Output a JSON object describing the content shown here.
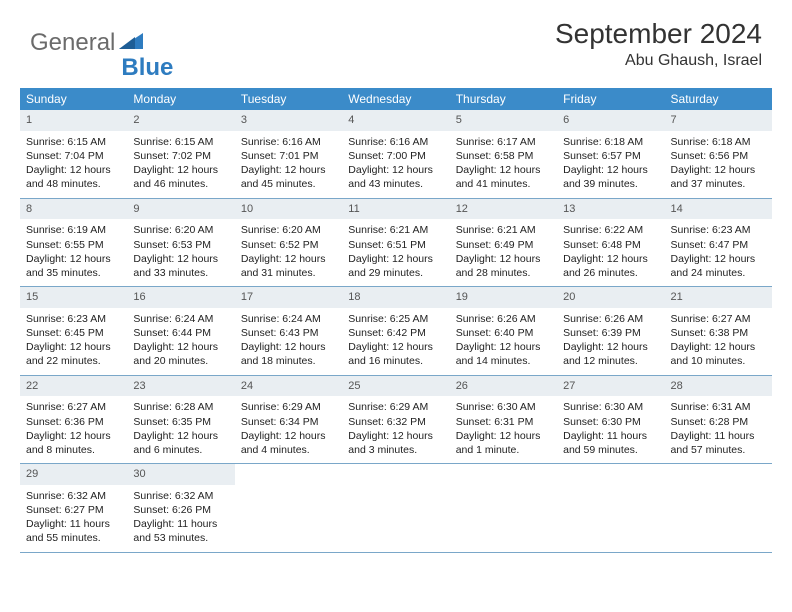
{
  "brand": {
    "part1": "General",
    "part2": "Blue"
  },
  "title": "September 2024",
  "location": "Abu Ghaush, Israel",
  "colors": {
    "header_bg": "#3b8bc9",
    "header_text": "#ffffff",
    "daynum_bg": "#e9eef2",
    "row_border": "#7aa7c9",
    "logo_gray": "#6b6b6b",
    "logo_blue": "#2e7cc0"
  },
  "day_names": [
    "Sunday",
    "Monday",
    "Tuesday",
    "Wednesday",
    "Thursday",
    "Friday",
    "Saturday"
  ],
  "weeks": [
    [
      {
        "n": "1",
        "sr": "Sunrise: 6:15 AM",
        "ss": "Sunset: 7:04 PM",
        "d1": "Daylight: 12 hours",
        "d2": "and 48 minutes."
      },
      {
        "n": "2",
        "sr": "Sunrise: 6:15 AM",
        "ss": "Sunset: 7:02 PM",
        "d1": "Daylight: 12 hours",
        "d2": "and 46 minutes."
      },
      {
        "n": "3",
        "sr": "Sunrise: 6:16 AM",
        "ss": "Sunset: 7:01 PM",
        "d1": "Daylight: 12 hours",
        "d2": "and 45 minutes."
      },
      {
        "n": "4",
        "sr": "Sunrise: 6:16 AM",
        "ss": "Sunset: 7:00 PM",
        "d1": "Daylight: 12 hours",
        "d2": "and 43 minutes."
      },
      {
        "n": "5",
        "sr": "Sunrise: 6:17 AM",
        "ss": "Sunset: 6:58 PM",
        "d1": "Daylight: 12 hours",
        "d2": "and 41 minutes."
      },
      {
        "n": "6",
        "sr": "Sunrise: 6:18 AM",
        "ss": "Sunset: 6:57 PM",
        "d1": "Daylight: 12 hours",
        "d2": "and 39 minutes."
      },
      {
        "n": "7",
        "sr": "Sunrise: 6:18 AM",
        "ss": "Sunset: 6:56 PM",
        "d1": "Daylight: 12 hours",
        "d2": "and 37 minutes."
      }
    ],
    [
      {
        "n": "8",
        "sr": "Sunrise: 6:19 AM",
        "ss": "Sunset: 6:55 PM",
        "d1": "Daylight: 12 hours",
        "d2": "and 35 minutes."
      },
      {
        "n": "9",
        "sr": "Sunrise: 6:20 AM",
        "ss": "Sunset: 6:53 PM",
        "d1": "Daylight: 12 hours",
        "d2": "and 33 minutes."
      },
      {
        "n": "10",
        "sr": "Sunrise: 6:20 AM",
        "ss": "Sunset: 6:52 PM",
        "d1": "Daylight: 12 hours",
        "d2": "and 31 minutes."
      },
      {
        "n": "11",
        "sr": "Sunrise: 6:21 AM",
        "ss": "Sunset: 6:51 PM",
        "d1": "Daylight: 12 hours",
        "d2": "and 29 minutes."
      },
      {
        "n": "12",
        "sr": "Sunrise: 6:21 AM",
        "ss": "Sunset: 6:49 PM",
        "d1": "Daylight: 12 hours",
        "d2": "and 28 minutes."
      },
      {
        "n": "13",
        "sr": "Sunrise: 6:22 AM",
        "ss": "Sunset: 6:48 PM",
        "d1": "Daylight: 12 hours",
        "d2": "and 26 minutes."
      },
      {
        "n": "14",
        "sr": "Sunrise: 6:23 AM",
        "ss": "Sunset: 6:47 PM",
        "d1": "Daylight: 12 hours",
        "d2": "and 24 minutes."
      }
    ],
    [
      {
        "n": "15",
        "sr": "Sunrise: 6:23 AM",
        "ss": "Sunset: 6:45 PM",
        "d1": "Daylight: 12 hours",
        "d2": "and 22 minutes."
      },
      {
        "n": "16",
        "sr": "Sunrise: 6:24 AM",
        "ss": "Sunset: 6:44 PM",
        "d1": "Daylight: 12 hours",
        "d2": "and 20 minutes."
      },
      {
        "n": "17",
        "sr": "Sunrise: 6:24 AM",
        "ss": "Sunset: 6:43 PM",
        "d1": "Daylight: 12 hours",
        "d2": "and 18 minutes."
      },
      {
        "n": "18",
        "sr": "Sunrise: 6:25 AM",
        "ss": "Sunset: 6:42 PM",
        "d1": "Daylight: 12 hours",
        "d2": "and 16 minutes."
      },
      {
        "n": "19",
        "sr": "Sunrise: 6:26 AM",
        "ss": "Sunset: 6:40 PM",
        "d1": "Daylight: 12 hours",
        "d2": "and 14 minutes."
      },
      {
        "n": "20",
        "sr": "Sunrise: 6:26 AM",
        "ss": "Sunset: 6:39 PM",
        "d1": "Daylight: 12 hours",
        "d2": "and 12 minutes."
      },
      {
        "n": "21",
        "sr": "Sunrise: 6:27 AM",
        "ss": "Sunset: 6:38 PM",
        "d1": "Daylight: 12 hours",
        "d2": "and 10 minutes."
      }
    ],
    [
      {
        "n": "22",
        "sr": "Sunrise: 6:27 AM",
        "ss": "Sunset: 6:36 PM",
        "d1": "Daylight: 12 hours",
        "d2": "and 8 minutes."
      },
      {
        "n": "23",
        "sr": "Sunrise: 6:28 AM",
        "ss": "Sunset: 6:35 PM",
        "d1": "Daylight: 12 hours",
        "d2": "and 6 minutes."
      },
      {
        "n": "24",
        "sr": "Sunrise: 6:29 AM",
        "ss": "Sunset: 6:34 PM",
        "d1": "Daylight: 12 hours",
        "d2": "and 4 minutes."
      },
      {
        "n": "25",
        "sr": "Sunrise: 6:29 AM",
        "ss": "Sunset: 6:32 PM",
        "d1": "Daylight: 12 hours",
        "d2": "and 3 minutes."
      },
      {
        "n": "26",
        "sr": "Sunrise: 6:30 AM",
        "ss": "Sunset: 6:31 PM",
        "d1": "Daylight: 12 hours",
        "d2": "and 1 minute."
      },
      {
        "n": "27",
        "sr": "Sunrise: 6:30 AM",
        "ss": "Sunset: 6:30 PM",
        "d1": "Daylight: 11 hours",
        "d2": "and 59 minutes."
      },
      {
        "n": "28",
        "sr": "Sunrise: 6:31 AM",
        "ss": "Sunset: 6:28 PM",
        "d1": "Daylight: 11 hours",
        "d2": "and 57 minutes."
      }
    ],
    [
      {
        "n": "29",
        "sr": "Sunrise: 6:32 AM",
        "ss": "Sunset: 6:27 PM",
        "d1": "Daylight: 11 hours",
        "d2": "and 55 minutes."
      },
      {
        "n": "30",
        "sr": "Sunrise: 6:32 AM",
        "ss": "Sunset: 6:26 PM",
        "d1": "Daylight: 11 hours",
        "d2": "and 53 minutes."
      },
      {
        "empty": true
      },
      {
        "empty": true
      },
      {
        "empty": true
      },
      {
        "empty": true
      },
      {
        "empty": true
      }
    ]
  ]
}
